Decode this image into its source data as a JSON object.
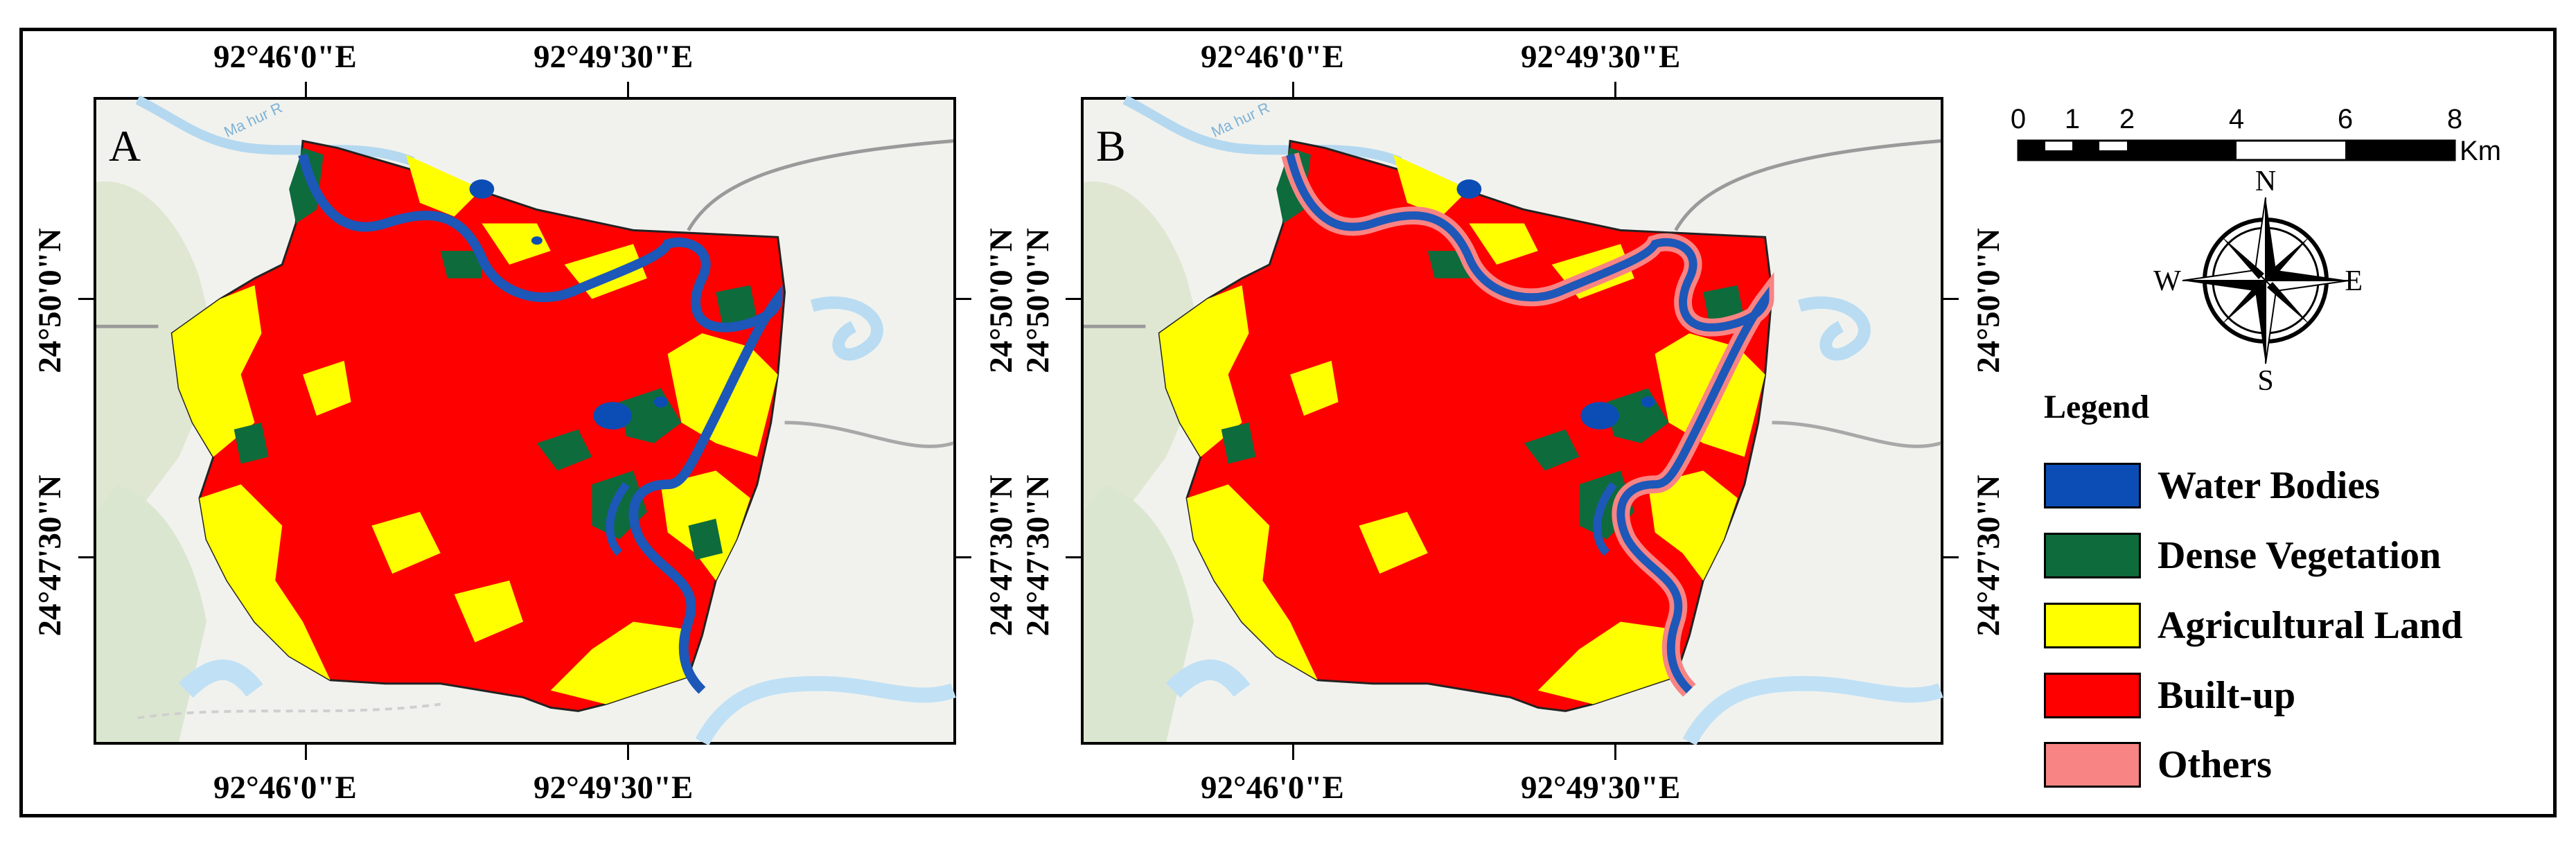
{
  "figure": {
    "panels": [
      {
        "letter": "A",
        "top_labels": [
          "92°46'0\"E",
          "92°49'30\"E"
        ],
        "bottom_labels": [
          "92°46'0\"E",
          "92°49'30\"E"
        ],
        "left_labels": [
          "24°50'0\"N",
          "24°47'30\"N"
        ],
        "right_labels": [
          "24°50'0\"N",
          "24°47'30\"N"
        ]
      },
      {
        "letter": "B",
        "top_labels": [
          "92°46'0\"E",
          "92°49'30\"E"
        ],
        "bottom_labels": [
          "92°46'0\"E",
          "92°49'30\"E"
        ],
        "left_labels": [
          "24°50'0\"N",
          "24°47'30\"N"
        ],
        "right_labels": [
          "24°50'0\"N",
          "24°47'30\"N"
        ]
      }
    ],
    "basemap_label": "Ma hur R",
    "scale_bar": {
      "ticks": [
        "0",
        "1",
        "2",
        "4",
        "6",
        "8"
      ],
      "unit": "Km"
    },
    "north_arrow": {
      "n": "N",
      "s": "S",
      "e": "E",
      "w": "W"
    },
    "legend": {
      "title": "Legend",
      "items": [
        {
          "label": "Water Bodies",
          "color": "#0b4db5"
        },
        {
          "label": "Dense Vegetation",
          "color": "#0e6b3c"
        },
        {
          "label": "Agricultural Land",
          "color": "#ffff00"
        },
        {
          "label": "Built-up",
          "color": "#ff0000"
        },
        {
          "label": "Others",
          "color": "#f88484"
        }
      ]
    }
  }
}
